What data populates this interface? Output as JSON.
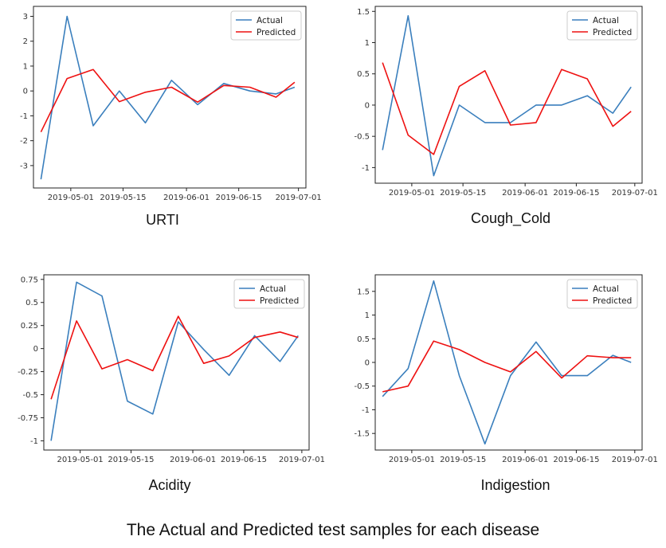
{
  "caption": "The Actual and Predicted test samples for each disease",
  "colors": {
    "actual": "#3a7fbd",
    "predicted": "#ee1111"
  },
  "x_dates": [
    "2019-04-23",
    "2019-04-30",
    "2019-05-07",
    "2019-05-14",
    "2019-05-21",
    "2019-05-28",
    "2019-06-04",
    "2019-06-11",
    "2019-06-18",
    "2019-06-25",
    "2019-06-30"
  ],
  "chart_data": [
    {
      "type": "line",
      "title": "URTI",
      "x_ticks": [
        "2019-05-01",
        "2019-05-15",
        "2019-06-01",
        "2019-06-15",
        "2019-07-01"
      ],
      "y_ticks": [
        3,
        2,
        1,
        0,
        -1,
        -2,
        -3
      ],
      "ylim": [
        -3.9,
        3.4
      ],
      "legend": [
        "Actual",
        "Predicted"
      ],
      "series": [
        {
          "name": "Actual",
          "values": [
            -3.55,
            3.0,
            -1.4,
            0.0,
            -1.28,
            0.43,
            -0.55,
            0.3,
            0.0,
            -0.12,
            0.15
          ]
        },
        {
          "name": "Predicted",
          "values": [
            -1.65,
            0.5,
            0.86,
            -0.43,
            -0.05,
            0.15,
            -0.45,
            0.22,
            0.15,
            -0.25,
            0.35
          ]
        }
      ]
    },
    {
      "type": "line",
      "title": "Cough_Cold",
      "x_ticks": [
        "2019-05-01",
        "2019-05-15",
        "2019-06-01",
        "2019-06-15",
        "2019-07-01"
      ],
      "y_ticks": [
        1.5,
        1.0,
        0.5,
        0.0,
        -0.5,
        -1.0
      ],
      "ylim": [
        -1.25,
        1.58
      ],
      "legend": [
        "Actual",
        "Predicted"
      ],
      "series": [
        {
          "name": "Actual",
          "values": [
            -0.72,
            1.43,
            -1.13,
            0.0,
            -0.28,
            -0.28,
            0.0,
            0.0,
            0.15,
            -0.13,
            0.29
          ]
        },
        {
          "name": "Predicted",
          "values": [
            0.68,
            -0.48,
            -0.79,
            0.3,
            0.55,
            -0.32,
            -0.28,
            0.57,
            0.42,
            -0.34,
            -0.1
          ]
        }
      ]
    },
    {
      "type": "line",
      "title": "Acidity",
      "x_ticks": [
        "2019-05-01",
        "2019-05-15",
        "2019-06-01",
        "2019-06-15",
        "2019-07-01"
      ],
      "y_ticks": [
        0.75,
        0.5,
        0.25,
        0.0,
        -0.25,
        -0.5,
        -0.75,
        -1.0
      ],
      "ylim": [
        -1.1,
        0.8
      ],
      "legend": [
        "Actual",
        "Predicted"
      ],
      "series": [
        {
          "name": "Actual",
          "values": [
            -1.0,
            0.72,
            0.57,
            -0.57,
            -0.71,
            0.29,
            -0.01,
            -0.29,
            0.14,
            -0.14,
            0.14
          ]
        },
        {
          "name": "Predicted",
          "values": [
            -0.55,
            0.3,
            -0.22,
            -0.12,
            -0.24,
            0.35,
            -0.16,
            -0.08,
            0.12,
            0.18,
            0.12
          ]
        }
      ]
    },
    {
      "type": "line",
      "title": "Indigestion",
      "x_ticks": [
        "2019-05-01",
        "2019-05-15",
        "2019-06-01",
        "2019-06-15",
        "2019-07-01"
      ],
      "y_ticks": [
        1.5,
        1.0,
        0.5,
        0.0,
        -0.5,
        -1.0,
        -1.5
      ],
      "ylim": [
        -1.85,
        1.85
      ],
      "legend": [
        "Actual",
        "Predicted"
      ],
      "series": [
        {
          "name": "Actual",
          "values": [
            -0.72,
            -0.13,
            1.72,
            -0.28,
            -1.72,
            -0.28,
            0.43,
            -0.28,
            -0.28,
            0.15,
            0.0
          ]
        },
        {
          "name": "Predicted",
          "values": [
            -0.62,
            -0.5,
            0.45,
            0.27,
            0.0,
            -0.2,
            0.23,
            -0.33,
            0.14,
            0.1,
            0.1
          ]
        }
      ]
    }
  ]
}
